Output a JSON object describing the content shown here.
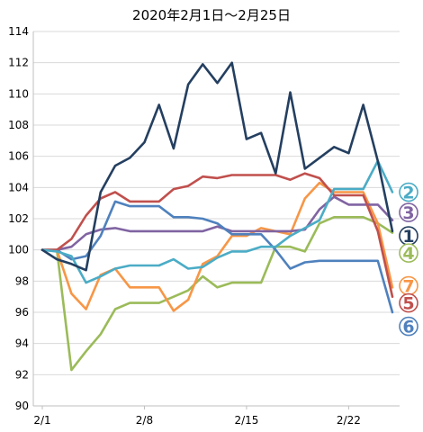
{
  "chart_data": {
    "type": "line",
    "title": "2020年2月1日～2月25日",
    "xlabel": "",
    "ylabel": "",
    "x": [
      "2/1",
      "2/2",
      "2/3",
      "2/4",
      "2/5",
      "2/6",
      "2/7",
      "2/8",
      "2/9",
      "2/10",
      "2/11",
      "2/12",
      "2/13",
      "2/14",
      "2/15",
      "2/16",
      "2/17",
      "2/18",
      "2/19",
      "2/20",
      "2/21",
      "2/22",
      "2/23",
      "2/24",
      "2/25"
    ],
    "xtick_labels": [
      "2/1",
      "2/8",
      "2/15",
      "2/22"
    ],
    "ylim": [
      90,
      114
    ],
    "yticks": [
      90,
      92,
      94,
      96,
      98,
      100,
      102,
      104,
      106,
      108,
      110,
      112,
      114
    ],
    "grid": true,
    "series": [
      {
        "name": "1",
        "color": "#243f60",
        "values": [
          100.0,
          99.4,
          99.1,
          98.7,
          103.7,
          105.4,
          105.9,
          106.9,
          109.3,
          106.5,
          110.6,
          111.9,
          110.7,
          112.0,
          107.1,
          107.5,
          104.9,
          110.1,
          105.2,
          105.9,
          106.6,
          106.2,
          109.3,
          105.7,
          101.2
        ]
      },
      {
        "name": "2",
        "color": "#4bacc6",
        "values": [
          100.0,
          99.9,
          99.6,
          97.9,
          98.3,
          98.8,
          99.0,
          99.0,
          99.0,
          99.4,
          98.8,
          98.9,
          99.5,
          99.9,
          99.9,
          100.2,
          100.2,
          100.9,
          101.4,
          101.9,
          103.9,
          103.9,
          103.9,
          105.7,
          103.7
        ]
      },
      {
        "name": "3",
        "color": "#8064a2",
        "values": [
          100.0,
          100.0,
          100.2,
          101.0,
          101.3,
          101.4,
          101.2,
          101.2,
          101.2,
          101.2,
          101.2,
          101.2,
          101.5,
          101.2,
          101.2,
          101.2,
          101.2,
          101.2,
          101.3,
          102.6,
          103.4,
          102.9,
          102.9,
          102.9,
          101.9
        ]
      },
      {
        "name": "4",
        "color": "#9bbb59",
        "values": [
          100.0,
          100.0,
          92.3,
          93.5,
          94.6,
          96.2,
          96.6,
          96.6,
          96.6,
          97.0,
          97.4,
          98.3,
          97.6,
          97.9,
          97.9,
          97.9,
          100.2,
          100.2,
          99.9,
          101.7,
          102.1,
          102.1,
          102.1,
          101.7,
          101.1
        ]
      },
      {
        "name": "5",
        "color": "#c0504d",
        "values": [
          100.0,
          100.0,
          100.7,
          102.2,
          103.3,
          103.7,
          103.1,
          103.1,
          103.1,
          103.9,
          104.1,
          104.7,
          104.6,
          104.8,
          104.8,
          104.8,
          104.8,
          104.5,
          104.9,
          104.6,
          103.5,
          103.5,
          103.5,
          101.2,
          97.0
        ]
      },
      {
        "name": "6",
        "color": "#4f81bd",
        "values": [
          100.0,
          100.0,
          99.4,
          99.6,
          100.9,
          103.1,
          102.8,
          102.8,
          102.8,
          102.1,
          102.1,
          102.0,
          101.7,
          101.0,
          101.0,
          101.0,
          100.0,
          98.8,
          99.2,
          99.3,
          99.3,
          99.3,
          99.3,
          99.3,
          96.0
        ]
      },
      {
        "name": "7",
        "color": "#f79646",
        "values": [
          100.0,
          100.0,
          97.2,
          96.2,
          98.4,
          98.8,
          97.6,
          97.6,
          97.6,
          96.1,
          96.8,
          99.1,
          99.6,
          100.9,
          100.9,
          101.4,
          101.2,
          101.0,
          103.3,
          104.3,
          103.7,
          103.7,
          103.7,
          101.7,
          97.6
        ]
      }
    ],
    "end_labels": [
      {
        "text": "2",
        "color": "#4bacc6",
        "y": 103.7
      },
      {
        "text": "3",
        "color": "#8064a2",
        "y": 102.4
      },
      {
        "text": "1",
        "color": "#243f60",
        "y": 100.9
      },
      {
        "text": "4",
        "color": "#9bbb59",
        "y": 99.8
      },
      {
        "text": "7",
        "color": "#f79646",
        "y": 97.7
      },
      {
        "text": "5",
        "color": "#c0504d",
        "y": 96.6
      },
      {
        "text": "6",
        "color": "#4f81bd",
        "y": 95.1
      }
    ]
  }
}
